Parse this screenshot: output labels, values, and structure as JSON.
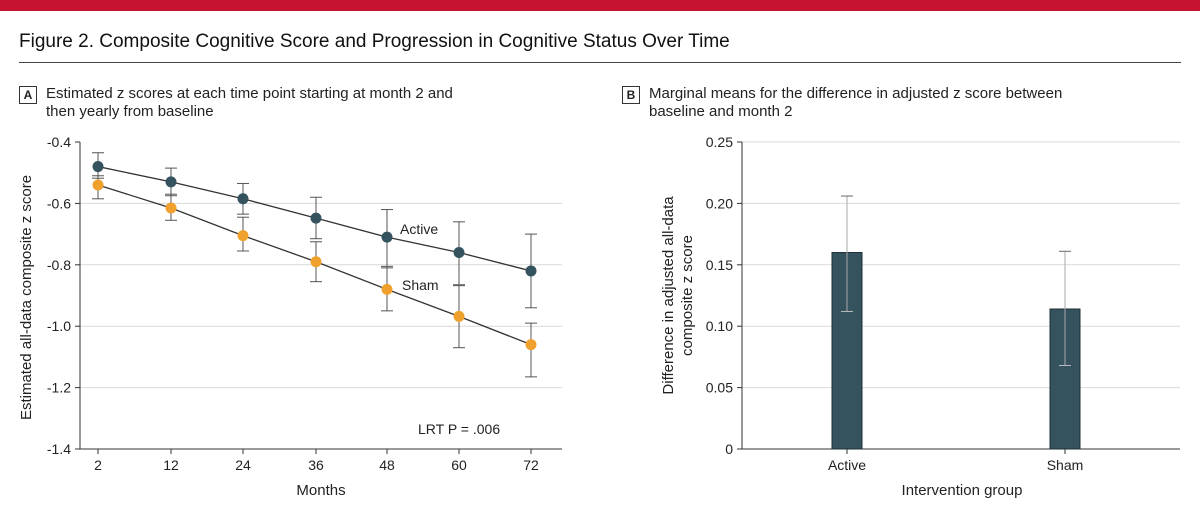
{
  "figure": {
    "title": "Figure 2. Composite Cognitive Score and Progression in Cognitive Status Over Time",
    "accent_color": "#c41230"
  },
  "chart_data": [
    {
      "type": "line",
      "panel_label": "A",
      "title_line1": "Estimated z scores at each time point starting at month 2 and",
      "title_line2": "then yearly from baseline",
      "xlabel": "Months",
      "ylabel": "Estimated all-data composite z score",
      "x": [
        2,
        12,
        24,
        36,
        48,
        60,
        72
      ],
      "x_tick_labels": [
        "2",
        "12",
        "24",
        "36",
        "48",
        "60",
        "72"
      ],
      "ylim": [
        -1.4,
        -0.4
      ],
      "y_ticks": [
        -0.4,
        -0.6,
        -0.8,
        -1.0,
        -1.2,
        -1.4
      ],
      "y_tick_labels": [
        "-0.4",
        "-0.6",
        "-0.8",
        "-1.0",
        "-1.2",
        "-1.4"
      ],
      "annotation": "LRT P = .006",
      "series": [
        {
          "name": "Active",
          "color": "#34535f",
          "values": [
            -0.48,
            -0.53,
            -0.585,
            -0.648,
            -0.71,
            -0.76,
            -0.82
          ],
          "ci_low": [
            -0.518,
            -0.575,
            -0.635,
            -0.715,
            -0.81,
            -0.865,
            -0.94
          ],
          "ci_high": [
            -0.435,
            -0.485,
            -0.535,
            -0.58,
            -0.62,
            -0.66,
            -0.7
          ]
        },
        {
          "name": "Sham",
          "color": "#f0a02c",
          "values": [
            -0.54,
            -0.615,
            -0.705,
            -0.79,
            -0.88,
            -0.968,
            -1.06
          ],
          "ci_low": [
            -0.585,
            -0.655,
            -0.755,
            -0.855,
            -0.95,
            -1.07,
            -1.165
          ],
          "ci_high": [
            -0.51,
            -0.57,
            -0.645,
            -0.725,
            -0.805,
            -0.868,
            -0.99
          ]
        }
      ]
    },
    {
      "type": "bar",
      "panel_label": "B",
      "title_line1": "Marginal means for the difference in adjusted z score between",
      "title_line2": "baseline and month 2",
      "xlabel": "Intervention group",
      "ylabel_line1": "Difference in adjusted all-data",
      "ylabel_line2": "composite z score",
      "categories": [
        "Active",
        "Sham"
      ],
      "values": [
        0.16,
        0.114
      ],
      "ci_low": [
        0.112,
        0.068
      ],
      "ci_high": [
        0.206,
        0.161
      ],
      "ylim": [
        0,
        0.25
      ],
      "y_ticks": [
        0,
        0.05,
        0.1,
        0.15,
        0.2,
        0.25
      ],
      "y_tick_labels": [
        "0",
        "0.05",
        "0.10",
        "0.15",
        "0.20",
        "0.25"
      ],
      "bar_color": "#34535f"
    }
  ]
}
